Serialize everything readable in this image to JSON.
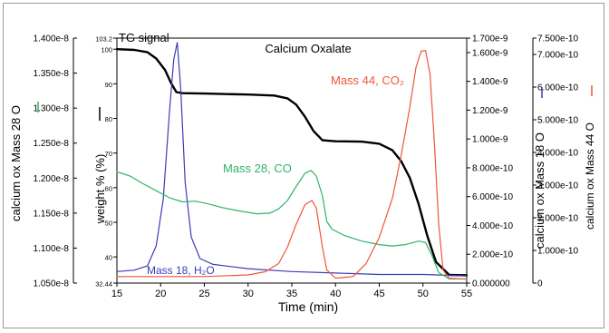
{
  "chart_data": {
    "type": "line",
    "title": "Calcium Oxalate",
    "xlabel": "Time (min)",
    "x_ticks": [
      15,
      20,
      25,
      30,
      35,
      40,
      45,
      50,
      55
    ],
    "xlim": [
      15,
      55
    ],
    "grid": false,
    "axes": {
      "mass28": {
        "label": "calcium ox Mass 28 O",
        "ylim": [
          1.05e-08,
          1.4e-08
        ],
        "ticks": [
          "1.050e-8",
          "1.100e-8",
          "1.150e-8",
          "1.200e-8",
          "1.250e-8",
          "1.300e-8",
          "1.350e-8",
          "1.400e-8"
        ],
        "color": "#2fb36a"
      },
      "weight": {
        "label": "weight % (%)",
        "ylim": [
          32.44,
          103.2
        ],
        "ticks": [
          "32.44",
          "40",
          "50",
          "60",
          "70",
          "80",
          "90",
          "100",
          "103.2"
        ],
        "color": "#000000"
      },
      "mass18": {
        "label": "calcium ox Mass 18 O",
        "ylim": [
          0,
          1.7e-09
        ],
        "ticks": [
          "0.000000",
          "2.000e-10",
          "4.000e-10",
          "6.000e-10",
          "8.000e-10",
          "1.000e-9",
          "1.200e-9",
          "1.400e-9",
          "1.600e-9",
          "1.700e-9"
        ],
        "color": "#3b3db5"
      },
      "mass44": {
        "label": "calcium ox Mass 44 O",
        "ylim": [
          0,
          7.5e-10
        ],
        "ticks": [
          "0",
          "1.000e-10",
          "2.000e-10",
          "3.000e-10",
          "4.000e-10",
          "5.000e-10",
          "6.000e-10",
          "7.000e-10",
          "7.500e-10"
        ],
        "color": "#f0553a"
      }
    },
    "series": [
      {
        "key": "weight",
        "axis": "weight",
        "color": "#000000",
        "annotation": "TG signal",
        "x": [
          15,
          17,
          18.5,
          19.5,
          20.5,
          21.2,
          21.8,
          22.5,
          25,
          30,
          33,
          34.5,
          35.5,
          36.5,
          37.5,
          38.5,
          40,
          43,
          45,
          46.5,
          47.5,
          48.5,
          49.5,
          50.5,
          51.5,
          53,
          55
        ],
        "values": [
          100,
          99.8,
          99.1,
          97.3,
          94,
          90.2,
          87.6,
          87.3,
          87.2,
          86.9,
          86.6,
          85.8,
          84,
          80.5,
          76.3,
          73.7,
          73.4,
          73.3,
          72.7,
          70.8,
          67.7,
          62.8,
          55.3,
          46,
          38.5,
          34.8,
          34.7
        ]
      },
      {
        "key": "mass18",
        "axis": "mass18",
        "color": "#3b3db5",
        "annotation": "Mass 18, H₂O",
        "x": [
          15,
          17,
          18.5,
          19.5,
          20.3,
          21,
          21.5,
          21.9,
          22.3,
          22.8,
          23.5,
          24.5,
          26,
          30,
          35,
          40,
          45,
          50,
          55
        ],
        "values": [
          8e-11,
          9e-11,
          1.2e-10,
          2.6e-10,
          5.8e-10,
          1.18e-09,
          1.55e-09,
          1.67e-09,
          1.35e-09,
          7e-10,
          3.2e-10,
          1.7e-10,
          1.3e-10,
          1e-10,
          8e-11,
          7e-11,
          6e-11,
          6e-11,
          5e-11
        ]
      },
      {
        "key": "mass28",
        "axis": "mass28",
        "color": "#2fb36a",
        "annotation": "Mass 28, CO",
        "x": [
          15,
          16.5,
          18,
          19.5,
          21,
          22.5,
          24,
          25.5,
          27,
          29,
          31,
          32.5,
          33.5,
          34.5,
          35.5,
          36.5,
          37.2,
          37.8,
          38.5,
          39,
          39.6,
          41,
          43,
          45,
          46.5,
          48,
          49.5,
          50.3,
          51,
          51.8,
          53,
          55
        ],
        "values": [
          1.209e-08,
          1.203e-08,
          1.192e-08,
          1.182e-08,
          1.172e-08,
          1.166e-08,
          1.167e-08,
          1.163e-08,
          1.158e-08,
          1.153e-08,
          1.149e-08,
          1.15e-08,
          1.156e-08,
          1.168e-08,
          1.188e-08,
          1.207e-08,
          1.211e-08,
          1.203e-08,
          1.175e-08,
          1.138e-08,
          1.127e-08,
          1.118e-08,
          1.11e-08,
          1.105e-08,
          1.103e-08,
          1.105e-08,
          1.11e-08,
          1.108e-08,
          1.09e-08,
          1.065e-08,
          1.056e-08,
          1.056e-08
        ]
      },
      {
        "key": "mass44",
        "axis": "mass44",
        "color": "#f0553a",
        "annotation": "Mass 44, CO₂",
        "x": [
          15,
          20,
          25,
          30,
          32,
          33.5,
          34.5,
          35.5,
          36.5,
          37.3,
          37.8,
          38.5,
          39,
          40,
          42,
          43.5,
          45,
          46.5,
          47.5,
          48.5,
          49.2,
          49.8,
          50.3,
          50.8,
          51.3,
          51.8,
          52.3,
          53,
          55
        ],
        "values": [
          2e-11,
          2e-11,
          2e-11,
          2.5e-11,
          3.5e-11,
          6e-11,
          1.1e-10,
          1.8e-10,
          2.4e-10,
          2.53e-10,
          2.3e-10,
          1.1e-10,
          4e-11,
          1.5e-11,
          2e-11,
          6e-11,
          1.4e-10,
          2.6e-10,
          3.9e-10,
          5.4e-10,
          6.6e-10,
          7.1e-10,
          7.12e-10,
          6.4e-10,
          4.3e-10,
          1.8e-10,
          4e-11,
          1.5e-11,
          1.2e-11
        ]
      }
    ]
  }
}
